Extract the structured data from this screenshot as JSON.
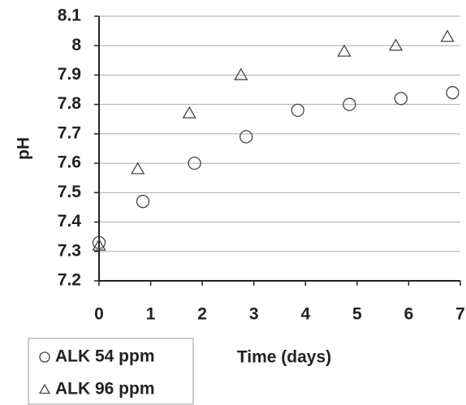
{
  "chart_data": {
    "type": "scatter",
    "x_label": "Time (days)",
    "y_label": "pH",
    "xlim": [
      0,
      7
    ],
    "xticks": [
      0,
      1,
      2,
      3,
      4,
      5,
      6,
      7
    ],
    "ylim": [
      7.2,
      8.1
    ],
    "yticks": [
      7.2,
      7.3,
      7.4,
      7.5,
      7.6,
      7.7,
      7.8,
      7.9,
      8,
      8.1
    ],
    "grid": true,
    "series": [
      {
        "name": "ALK 54 ppm",
        "marker": "circle",
        "color": "#444444",
        "x": [
          0,
          0.85,
          1.85,
          2.85,
          3.85,
          4.85,
          5.85,
          6.85
        ],
        "values": [
          7.33,
          7.47,
          7.6,
          7.69,
          7.78,
          7.8,
          7.82,
          7.84
        ]
      },
      {
        "name": "ALK 96 ppm",
        "marker": "triangle",
        "color": "#444444",
        "x": [
          0,
          0.75,
          1.75,
          2.75,
          4.75,
          5.75,
          6.75
        ],
        "values": [
          7.32,
          7.58,
          7.77,
          7.9,
          7.98,
          8.0,
          8.03
        ]
      }
    ]
  }
}
